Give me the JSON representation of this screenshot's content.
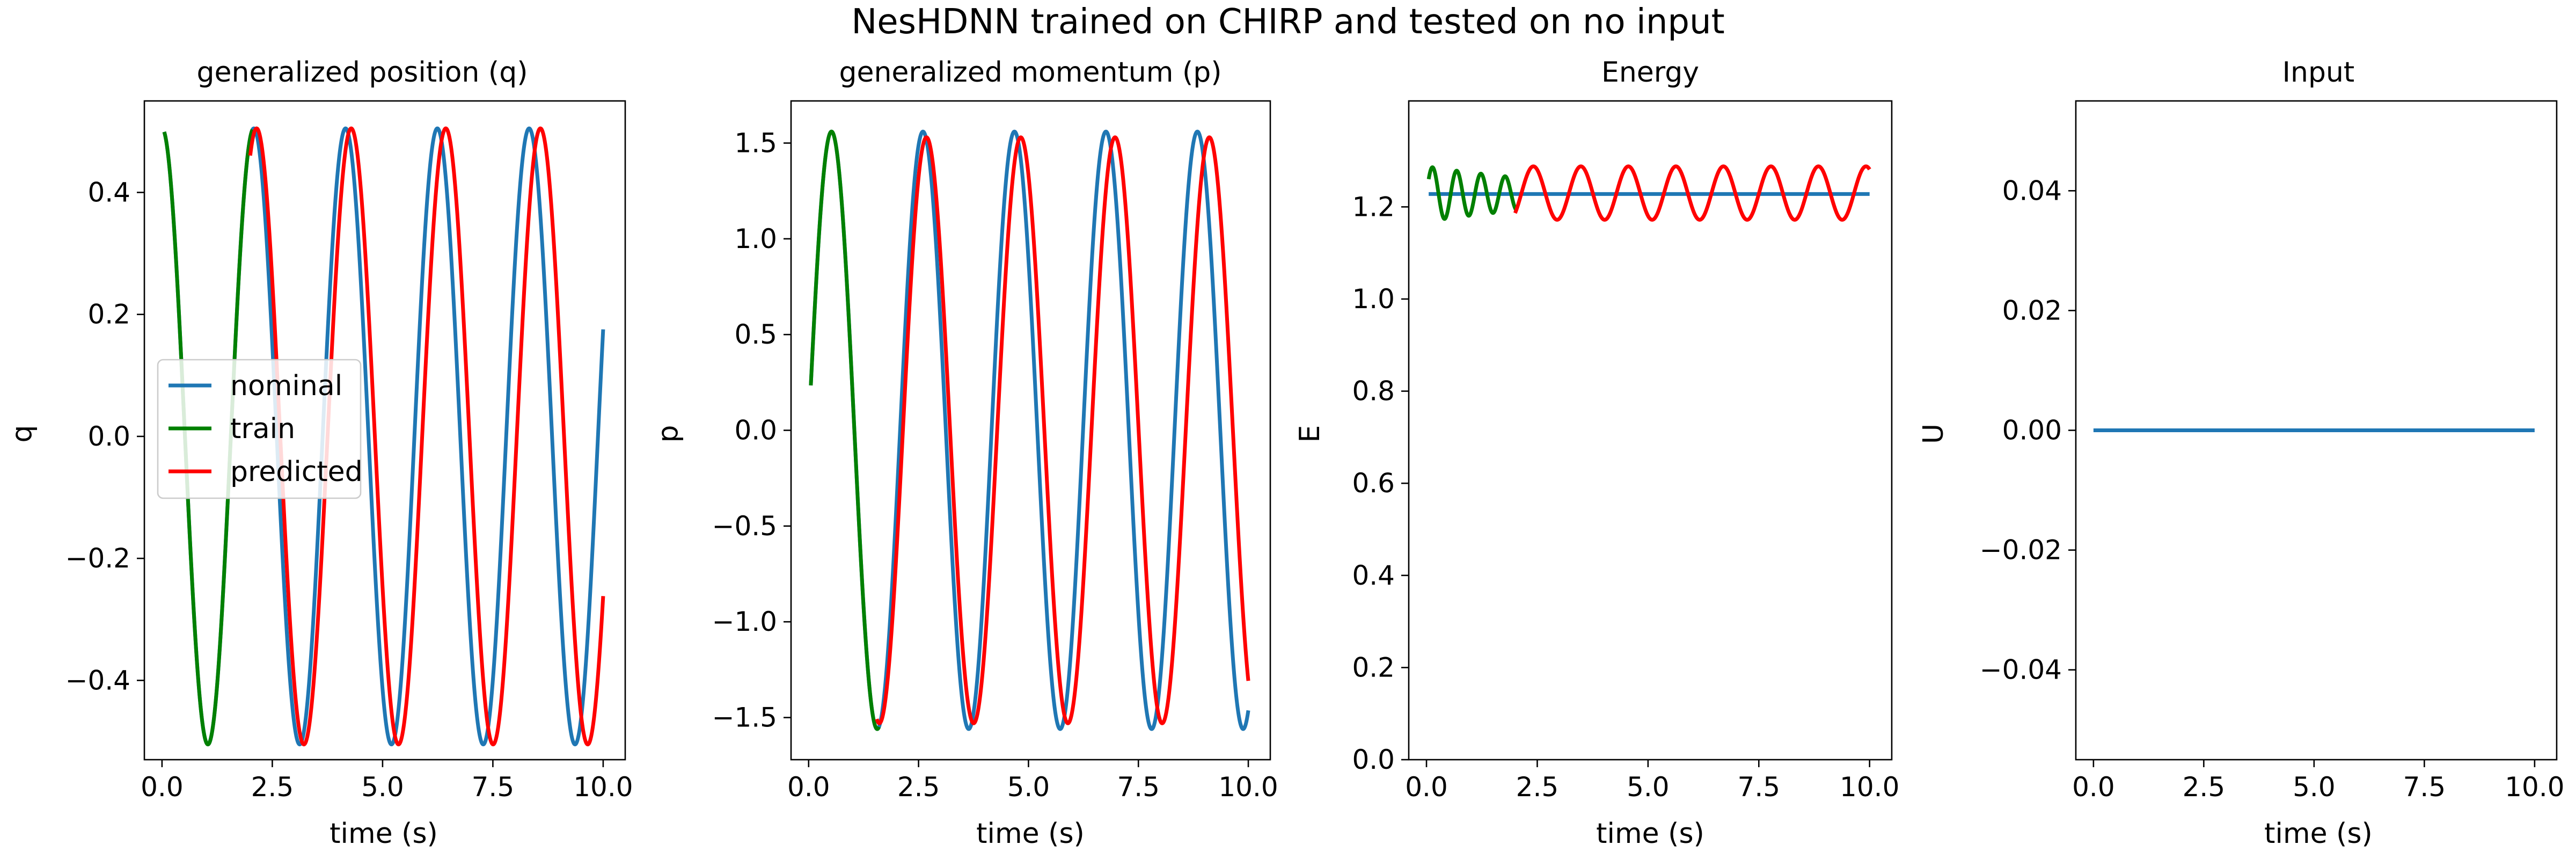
{
  "figure": {
    "title": "NesHDNN trained on CHIRP and tested on no input"
  },
  "colors": {
    "nominal": "#1f77b4",
    "train": "#008000",
    "predicted": "#ff0000"
  },
  "chart_data": [
    {
      "type": "line",
      "title": "generalized position (q)",
      "xlabel": "time (s)",
      "ylabel": "q",
      "xlim": [
        -0.4,
        10.5
      ],
      "ylim": [
        -0.53,
        0.55
      ],
      "xticks": [
        0.0,
        2.5,
        5.0,
        7.5,
        10.0
      ],
      "xtick_labels": [
        "0.0",
        "2.5",
        "5.0",
        "7.5",
        "10.0"
      ],
      "yticks": [
        -0.4,
        -0.2,
        0.0,
        0.2,
        0.4
      ],
      "ytick_labels": [
        "−0.4",
        "−0.2",
        "0.0",
        "0.2",
        "0.4"
      ],
      "legend": {
        "position": "center-left",
        "entries": [
          "nominal",
          "train",
          "predicted"
        ]
      },
      "series": [
        {
          "name": "nominal",
          "role": "nominal",
          "kind": "cos",
          "t_start": 0.05,
          "t_end": 10.0,
          "amp": 0.505,
          "omega": 3.02,
          "offset": 0.0
        },
        {
          "name": "train",
          "role": "train",
          "kind": "cos",
          "t_start": 0.05,
          "t_end": 2.05,
          "amp": 0.505,
          "omega": 3.02,
          "offset": 0.0
        },
        {
          "name": "predicted",
          "role": "predicted",
          "kind": "cos",
          "t_start": 2.0,
          "t_end": 10.0,
          "amp": 0.505,
          "omega": 2.93,
          "offset": 0.0
        }
      ]
    },
    {
      "type": "line",
      "title": "generalized momentum (p)",
      "xlabel": "time (s)",
      "ylabel": "p",
      "xlim": [
        -0.4,
        10.5
      ],
      "ylim": [
        -1.72,
        1.72
      ],
      "xticks": [
        0.0,
        2.5,
        5.0,
        7.5,
        10.0
      ],
      "xtick_labels": [
        "0.0",
        "2.5",
        "5.0",
        "7.5",
        "10.0"
      ],
      "yticks": [
        -1.5,
        -1.0,
        -0.5,
        0.0,
        0.5,
        1.0,
        1.5
      ],
      "ytick_labels": [
        "−1.5",
        "−1.0",
        "−0.5",
        "0.0",
        "0.5",
        "1.0",
        "1.5"
      ],
      "series": [
        {
          "name": "nominal",
          "role": "nominal",
          "kind": "sin",
          "t_start": 0.05,
          "t_end": 10.0,
          "amp": 1.56,
          "omega": 3.02,
          "offset": 0.0
        },
        {
          "name": "train",
          "role": "train",
          "kind": "sin",
          "t_start": 0.05,
          "t_end": 1.6,
          "amp": 1.56,
          "omega": 3.02,
          "offset": 0.0
        },
        {
          "name": "predicted",
          "role": "predicted",
          "kind": "sin",
          "t_start": 1.55,
          "t_end": 10.0,
          "amp": 1.53,
          "omega": 2.93,
          "offset": 0.0
        }
      ]
    },
    {
      "type": "line",
      "title": "Energy",
      "xlabel": "time (s)",
      "ylabel": "E",
      "xlim": [
        -0.4,
        10.5
      ],
      "ylim": [
        0.0,
        1.43
      ],
      "xticks": [
        0.0,
        2.5,
        5.0,
        7.5,
        10.0
      ],
      "xtick_labels": [
        "0.0",
        "2.5",
        "5.0",
        "7.5",
        "10.0"
      ],
      "yticks": [
        0.0,
        0.2,
        0.4,
        0.6,
        0.8,
        1.0,
        1.2
      ],
      "ytick_labels": [
        "0.0",
        "0.2",
        "0.4",
        "0.6",
        "0.8",
        "1.0",
        "1.2"
      ],
      "series": [
        {
          "name": "nominal",
          "role": "nominal",
          "kind": "sin",
          "t_start": 0.05,
          "t_end": 10.0,
          "amp": 0.0,
          "omega": 1.0,
          "offset": 1.228
        },
        {
          "name": "train",
          "role": "train",
          "kind": "damped",
          "t_start": 0.05,
          "t_end": 2.05,
          "amp": 0.06,
          "omega": 11.5,
          "offset": 1.228
        },
        {
          "name": "predicted",
          "role": "predicted",
          "kind": "sin",
          "t_start": 2.0,
          "t_end": 10.0,
          "amp": 0.058,
          "omega": 5.86,
          "offset": 1.23
        }
      ]
    },
    {
      "type": "line",
      "title": "Input",
      "xlabel": "time (s)",
      "ylabel": "U",
      "xlim": [
        -0.4,
        10.5
      ],
      "ylim": [
        -0.055,
        0.055
      ],
      "xticks": [
        0.0,
        2.5,
        5.0,
        7.5,
        10.0
      ],
      "xtick_labels": [
        "0.0",
        "2.5",
        "5.0",
        "7.5",
        "10.0"
      ],
      "yticks": [
        -0.04,
        -0.02,
        0.0,
        0.02,
        0.04
      ],
      "ytick_labels": [
        "−0.04",
        "−0.02",
        "0.00",
        "0.02",
        "0.04"
      ],
      "series": [
        {
          "name": "nominal",
          "role": "nominal",
          "kind": "sin",
          "t_start": 0.0,
          "t_end": 10.0,
          "amp": 0.0,
          "omega": 1.0,
          "offset": 0.0
        }
      ]
    }
  ]
}
